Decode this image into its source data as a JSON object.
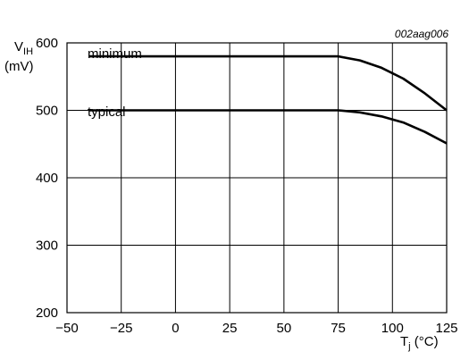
{
  "chart_data": {
    "type": "line",
    "figure_id": "002aag006",
    "xlabel": {
      "main": "T",
      "sub": "j",
      "unit": " (°C)"
    },
    "ylabel": {
      "main": "V",
      "sub": "IH",
      "unit": "(mV)"
    },
    "xlim": [
      -50,
      125
    ],
    "ylim": [
      200,
      600
    ],
    "xticks": [
      -50,
      -25,
      0,
      25,
      50,
      75,
      100,
      125
    ],
    "xtick_labels": [
      "−50",
      "−25",
      "0",
      "25",
      "50",
      "75",
      "100",
      "125"
    ],
    "yticks": [
      200,
      300,
      400,
      500,
      600
    ],
    "ytick_labels": [
      "200",
      "300",
      "400",
      "500",
      "600"
    ],
    "grid": true,
    "series": [
      {
        "name": "minimum",
        "x": [
          -40,
          75,
          85,
          95,
          105,
          115,
          125
        ],
        "y": [
          580,
          580,
          574,
          563,
          547,
          525,
          500
        ]
      },
      {
        "name": "typical",
        "x": [
          -40,
          75,
          85,
          95,
          105,
          115,
          125
        ],
        "y": [
          500,
          500,
          497,
          491,
          482,
          468,
          451
        ]
      }
    ]
  }
}
